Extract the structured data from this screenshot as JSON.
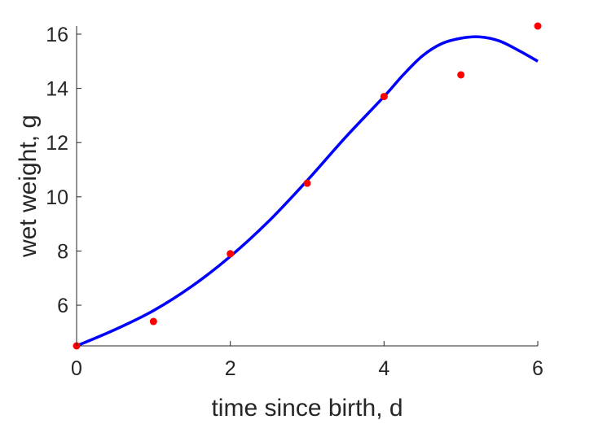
{
  "chart_data": {
    "type": "scatter",
    "xlabel": "time since birth, d",
    "ylabel": "wet weight, g",
    "xlim": [
      0,
      6
    ],
    "ylim": [
      4.5,
      16.3
    ],
    "x_ticks": [
      0,
      2,
      4,
      6
    ],
    "y_ticks": [
      6,
      8,
      10,
      12,
      14,
      16
    ],
    "grid": false,
    "colors": {
      "points": "#ff0000",
      "curve": "#0000ff",
      "axis": "#262626"
    },
    "series": [
      {
        "kind": "points",
        "x": [
          0,
          1,
          2,
          3,
          4,
          5,
          6
        ],
        "y": [
          4.5,
          5.4,
          7.9,
          10.5,
          13.7,
          14.5,
          16.3
        ]
      },
      {
        "kind": "line",
        "x": [
          0,
          0.5,
          1,
          1.5,
          2,
          2.5,
          3,
          3.5,
          4,
          4.25,
          4.5,
          4.75,
          5,
          5.25,
          5.5,
          5.75,
          6
        ],
        "y": [
          4.5,
          5.1,
          5.8,
          6.7,
          7.8,
          9.1,
          10.6,
          12.2,
          13.7,
          14.5,
          15.2,
          15.65,
          15.85,
          15.9,
          15.75,
          15.4,
          15.0
        ]
      }
    ]
  }
}
